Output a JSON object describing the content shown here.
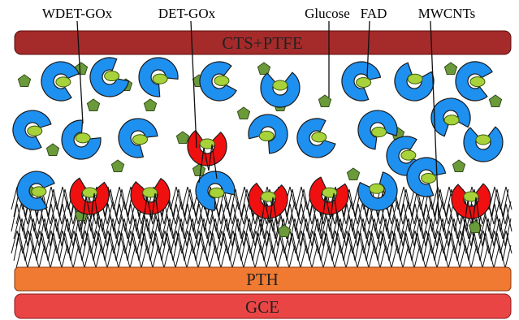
{
  "labels": [
    "WDET-GOx",
    "DET-GOx",
    "Glucose",
    "FAD",
    "MWCNTs"
  ],
  "layers": [
    "CTS+PTFE",
    "PTH",
    "GCE"
  ]
}
